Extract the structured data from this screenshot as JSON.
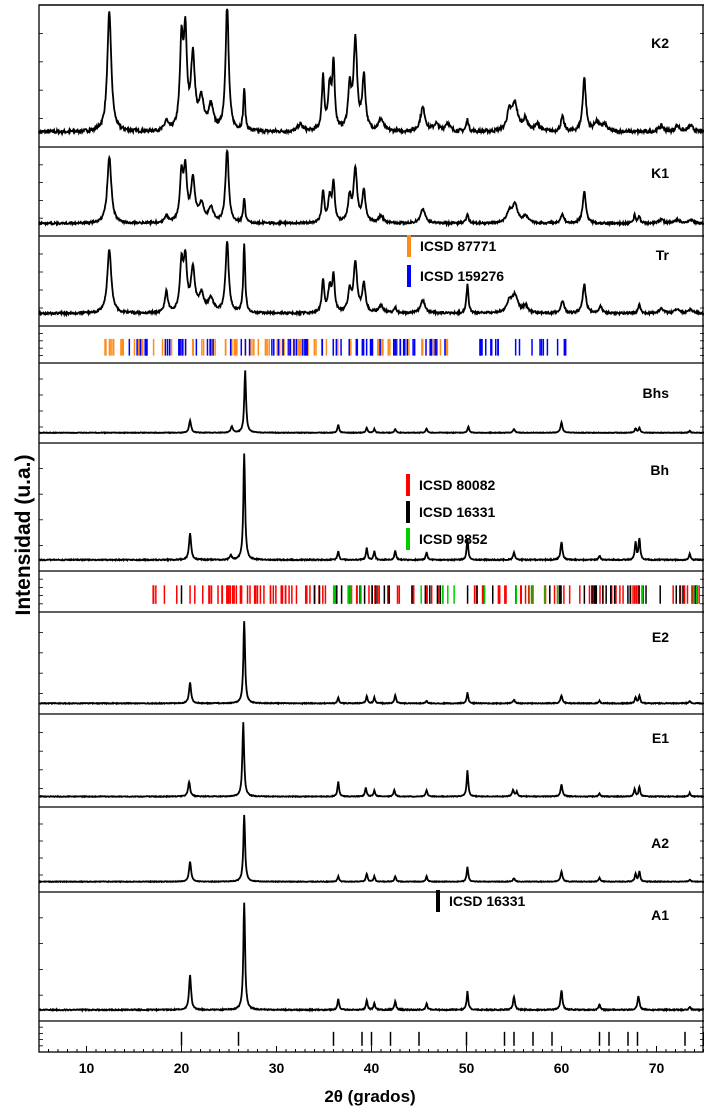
{
  "chart_data": {
    "type": "line",
    "title": "",
    "xlabel": "2θ (grados)",
    "ylabel": "Intensidad (u.a.)",
    "xlim": [
      5,
      75
    ],
    "xticks": [
      10,
      20,
      30,
      40,
      50,
      60,
      70
    ],
    "grid": false,
    "legend_position": "inside panels",
    "colors": {
      "curve": "#000000",
      "icsd_87771": "#ff8c1a",
      "icsd_159276": "#0000ff",
      "icsd_80082": "#ff0000",
      "icsd_16331": "#000000",
      "icsd_9852": "#00cc00"
    },
    "series": [
      {
        "name": "K2",
        "baseline": 0.05,
        "noise": 0.03,
        "peaks": [
          [
            12.4,
            1.0,
            0.25
          ],
          [
            18.4,
            0.08,
            0.2
          ],
          [
            20.0,
            0.7,
            0.2
          ],
          [
            20.4,
            0.75,
            0.2
          ],
          [
            21.2,
            0.6,
            0.25
          ],
          [
            22.1,
            0.25,
            0.3
          ],
          [
            23.1,
            0.2,
            0.3
          ],
          [
            24.8,
            1.05,
            0.2
          ],
          [
            26.6,
            0.35,
            0.12
          ],
          [
            32.5,
            0.06,
            0.3
          ],
          [
            34.9,
            0.45,
            0.15
          ],
          [
            35.6,
            0.35,
            0.2
          ],
          [
            36.0,
            0.55,
            0.15
          ],
          [
            37.7,
            0.35,
            0.2
          ],
          [
            38.3,
            0.75,
            0.22
          ],
          [
            39.2,
            0.45,
            0.2
          ],
          [
            41.0,
            0.1,
            0.3
          ],
          [
            45.4,
            0.2,
            0.3
          ],
          [
            46.8,
            0.06,
            0.3
          ],
          [
            48.0,
            0.07,
            0.3
          ],
          [
            50.1,
            0.1,
            0.15
          ],
          [
            54.5,
            0.15,
            0.3
          ],
          [
            55.1,
            0.22,
            0.35
          ],
          [
            56.2,
            0.1,
            0.3
          ],
          [
            57.5,
            0.06,
            0.3
          ],
          [
            60.1,
            0.12,
            0.2
          ],
          [
            62.4,
            0.45,
            0.2
          ],
          [
            63.7,
            0.08,
            0.3
          ],
          [
            64.5,
            0.06,
            0.3
          ],
          [
            70.5,
            0.05,
            0.3
          ],
          [
            72.2,
            0.05,
            0.3
          ],
          [
            73.6,
            0.05,
            0.3
          ]
        ]
      },
      {
        "name": "K1",
        "baseline": 0.05,
        "noise": 0.03,
        "peaks": [
          [
            12.4,
            0.95,
            0.25
          ],
          [
            18.4,
            0.1,
            0.2
          ],
          [
            20.0,
            0.65,
            0.2
          ],
          [
            20.4,
            0.7,
            0.2
          ],
          [
            21.2,
            0.6,
            0.25
          ],
          [
            22.1,
            0.25,
            0.3
          ],
          [
            23.1,
            0.2,
            0.3
          ],
          [
            24.8,
            1.05,
            0.2
          ],
          [
            26.6,
            0.35,
            0.12
          ],
          [
            34.9,
            0.45,
            0.15
          ],
          [
            35.6,
            0.35,
            0.2
          ],
          [
            36.0,
            0.55,
            0.15
          ],
          [
            37.7,
            0.35,
            0.2
          ],
          [
            38.3,
            0.75,
            0.22
          ],
          [
            39.2,
            0.45,
            0.2
          ],
          [
            41.0,
            0.1,
            0.3
          ],
          [
            45.4,
            0.2,
            0.3
          ],
          [
            50.1,
            0.12,
            0.15
          ],
          [
            54.5,
            0.15,
            0.3
          ],
          [
            55.1,
            0.25,
            0.35
          ],
          [
            56.2,
            0.1,
            0.3
          ],
          [
            60.1,
            0.12,
            0.2
          ],
          [
            62.4,
            0.45,
            0.2
          ],
          [
            67.7,
            0.12,
            0.12
          ],
          [
            68.2,
            0.1,
            0.12
          ],
          [
            70.5,
            0.05,
            0.3
          ],
          [
            72.2,
            0.05,
            0.3
          ],
          [
            73.6,
            0.05,
            0.3
          ]
        ]
      },
      {
        "name": "Tr",
        "baseline": 0.05,
        "noise": 0.03,
        "peaks": [
          [
            12.4,
            0.9,
            0.25
          ],
          [
            18.4,
            0.3,
            0.18
          ],
          [
            20.0,
            0.65,
            0.2
          ],
          [
            20.4,
            0.7,
            0.2
          ],
          [
            21.2,
            0.6,
            0.25
          ],
          [
            22.1,
            0.25,
            0.3
          ],
          [
            23.1,
            0.2,
            0.3
          ],
          [
            24.8,
            1.0,
            0.2
          ],
          [
            26.6,
            0.95,
            0.12
          ],
          [
            34.9,
            0.45,
            0.15
          ],
          [
            35.6,
            0.35,
            0.2
          ],
          [
            36.0,
            0.5,
            0.15
          ],
          [
            37.7,
            0.3,
            0.2
          ],
          [
            38.3,
            0.7,
            0.22
          ],
          [
            39.2,
            0.4,
            0.2
          ],
          [
            41.0,
            0.1,
            0.3
          ],
          [
            42.5,
            0.08,
            0.15
          ],
          [
            45.4,
            0.18,
            0.3
          ],
          [
            50.1,
            0.4,
            0.13
          ],
          [
            54.5,
            0.15,
            0.3
          ],
          [
            55.1,
            0.25,
            0.35
          ],
          [
            56.2,
            0.1,
            0.3
          ],
          [
            60.1,
            0.18,
            0.2
          ],
          [
            62.4,
            0.4,
            0.2
          ],
          [
            64.1,
            0.1,
            0.2
          ],
          [
            68.2,
            0.12,
            0.15
          ],
          [
            70.5,
            0.06,
            0.3
          ],
          [
            72.2,
            0.06,
            0.3
          ],
          [
            73.6,
            0.05,
            0.3
          ]
        ]
      },
      {
        "name": "Bhs",
        "baseline": 0.02,
        "noise": 0.01,
        "peaks": [
          [
            20.9,
            0.2,
            0.13
          ],
          [
            25.3,
            0.1,
            0.13
          ],
          [
            26.7,
            1.0,
            0.11
          ],
          [
            36.5,
            0.13,
            0.1
          ],
          [
            39.5,
            0.08,
            0.1
          ],
          [
            40.3,
            0.06,
            0.1
          ],
          [
            42.5,
            0.06,
            0.1
          ],
          [
            45.8,
            0.07,
            0.1
          ],
          [
            50.2,
            0.1,
            0.1
          ],
          [
            55.0,
            0.06,
            0.12
          ],
          [
            60.0,
            0.17,
            0.12
          ],
          [
            67.8,
            0.07,
            0.1
          ],
          [
            68.2,
            0.08,
            0.1
          ],
          [
            73.5,
            0.03,
            0.1
          ]
        ]
      },
      {
        "name": "Bh",
        "baseline": 0.02,
        "noise": 0.01,
        "peaks": [
          [
            20.9,
            0.25,
            0.13
          ],
          [
            25.2,
            0.04,
            0.12
          ],
          [
            26.6,
            1.0,
            0.11
          ],
          [
            36.5,
            0.08,
            0.1
          ],
          [
            39.5,
            0.11,
            0.1
          ],
          [
            40.3,
            0.08,
            0.1
          ],
          [
            42.5,
            0.09,
            0.1
          ],
          [
            45.8,
            0.07,
            0.1
          ],
          [
            50.1,
            0.2,
            0.1
          ],
          [
            55.0,
            0.07,
            0.12
          ],
          [
            60.0,
            0.17,
            0.12
          ],
          [
            64.0,
            0.04,
            0.1
          ],
          [
            67.8,
            0.16,
            0.1
          ],
          [
            68.2,
            0.2,
            0.1
          ],
          [
            73.5,
            0.06,
            0.1
          ]
        ]
      },
      {
        "name": "E2",
        "baseline": 0.02,
        "noise": 0.01,
        "peaks": [
          [
            20.9,
            0.25,
            0.13
          ],
          [
            26.6,
            1.0,
            0.11
          ],
          [
            36.5,
            0.07,
            0.1
          ],
          [
            39.5,
            0.09,
            0.1
          ],
          [
            40.3,
            0.07,
            0.1
          ],
          [
            42.5,
            0.1,
            0.1
          ],
          [
            45.8,
            0.03,
            0.1
          ],
          [
            50.1,
            0.13,
            0.1
          ],
          [
            55.0,
            0.04,
            0.12
          ],
          [
            60.0,
            0.1,
            0.12
          ],
          [
            64.0,
            0.03,
            0.1
          ],
          [
            67.8,
            0.07,
            0.1
          ],
          [
            68.2,
            0.09,
            0.1
          ],
          [
            73.5,
            0.03,
            0.1
          ]
        ]
      },
      {
        "name": "E1",
        "baseline": 0.02,
        "noise": 0.01,
        "peaks": [
          [
            20.8,
            0.2,
            0.13
          ],
          [
            26.5,
            1.0,
            0.11
          ],
          [
            36.5,
            0.2,
            0.1
          ],
          [
            39.4,
            0.12,
            0.1
          ],
          [
            40.3,
            0.08,
            0.1
          ],
          [
            42.4,
            0.09,
            0.1
          ],
          [
            45.8,
            0.09,
            0.1
          ],
          [
            50.1,
            0.35,
            0.1
          ],
          [
            54.9,
            0.09,
            0.12
          ],
          [
            55.3,
            0.06,
            0.1
          ],
          [
            60.0,
            0.16,
            0.12
          ],
          [
            64.0,
            0.04,
            0.1
          ],
          [
            67.7,
            0.1,
            0.1
          ],
          [
            68.2,
            0.13,
            0.1
          ],
          [
            73.5,
            0.05,
            0.1
          ]
        ]
      },
      {
        "name": "A2",
        "baseline": 0.02,
        "noise": 0.01,
        "peaks": [
          [
            20.9,
            0.3,
            0.13
          ],
          [
            26.6,
            1.0,
            0.11
          ],
          [
            36.5,
            0.08,
            0.1
          ],
          [
            39.5,
            0.12,
            0.1
          ],
          [
            40.3,
            0.08,
            0.1
          ],
          [
            42.5,
            0.08,
            0.1
          ],
          [
            45.8,
            0.08,
            0.1
          ],
          [
            50.1,
            0.22,
            0.1
          ],
          [
            55.0,
            0.05,
            0.12
          ],
          [
            60.0,
            0.15,
            0.12
          ],
          [
            64.0,
            0.06,
            0.1
          ],
          [
            67.8,
            0.12,
            0.1
          ],
          [
            68.2,
            0.15,
            0.1
          ],
          [
            73.5,
            0.03,
            0.1
          ]
        ]
      },
      {
        "name": "A1",
        "baseline": 0.02,
        "noise": 0.01,
        "peaks": [
          [
            20.9,
            0.32,
            0.13
          ],
          [
            26.6,
            1.0,
            0.11
          ],
          [
            36.5,
            0.1,
            0.1
          ],
          [
            39.5,
            0.09,
            0.1
          ],
          [
            40.3,
            0.06,
            0.1
          ],
          [
            42.5,
            0.08,
            0.1
          ],
          [
            45.8,
            0.06,
            0.1
          ],
          [
            50.1,
            0.17,
            0.1
          ],
          [
            55.0,
            0.12,
            0.12
          ],
          [
            60.0,
            0.18,
            0.12
          ],
          [
            64.0,
            0.05,
            0.1
          ],
          [
            68.1,
            0.13,
            0.12
          ],
          [
            73.5,
            0.03,
            0.1
          ]
        ]
      }
    ],
    "reference_bands": [
      {
        "name": "ICSD 87771 / ICSD 159276",
        "refs": [
          {
            "label": "ICSD 87771",
            "color": "#ff8c1a",
            "range": [
              12,
              48
            ],
            "count": 100,
            "seed": 11,
            "extra": [
              11.95
            ]
          },
          {
            "label": "ICSD 159276",
            "color": "#0000ff",
            "range": [
              14.5,
              61
            ],
            "count": 90,
            "seed": 23,
            "extra": []
          }
        ]
      },
      {
        "name": "ICSD 80082 / ICSD 16331 / ICSD 9852",
        "refs": [
          {
            "label": "ICSD 80082",
            "color": "#ff0000",
            "range": [
              17,
              75
            ],
            "count": 110,
            "seed": 37,
            "extra": [
              17.3,
              18.2,
              19.5,
              21.4,
              24.3,
              25.0,
              26.2,
              30.5,
              32.1
            ]
          },
          {
            "label": "ICSD 16331",
            "color": "#000000",
            "range": [
              34,
              75
            ],
            "count": 45,
            "seed": 41,
            "extra": [
              20.0
            ]
          },
          {
            "label": "ICSD 9852",
            "color": "#00cc00",
            "range": [
              36,
              75
            ],
            "count": 18,
            "seed": 53,
            "extra": [
              47.5
            ]
          }
        ]
      },
      {
        "name": "ICSD 16331",
        "refs": [
          {
            "label": "ICSD 16331",
            "color": "#000000",
            "lines": [
              20.0,
              26.0,
              36.0,
              39.0,
              40.0,
              42.0,
              45.0,
              50.0,
              54.0,
              55.0,
              57.0,
              59.0,
              64.0,
              65.0,
              67.0,
              68.0,
              73.0,
              75.0
            ]
          }
        ]
      }
    ],
    "legends": [
      {
        "items": [
          {
            "text": "ICSD 87771",
            "color": "#ff8c1a"
          },
          {
            "text": "ICSD 159276",
            "color": "#0000ff"
          }
        ]
      },
      {
        "items": [
          {
            "text": "ICSD 80082",
            "color": "#ff0000"
          },
          {
            "text": "ICSD 16331",
            "color": "#000000"
          },
          {
            "text": "ICSD 9852",
            "color": "#00cc00"
          }
        ]
      },
      {
        "items": [
          {
            "text": "ICSD 16331",
            "color": "#000000"
          }
        ]
      }
    ]
  }
}
